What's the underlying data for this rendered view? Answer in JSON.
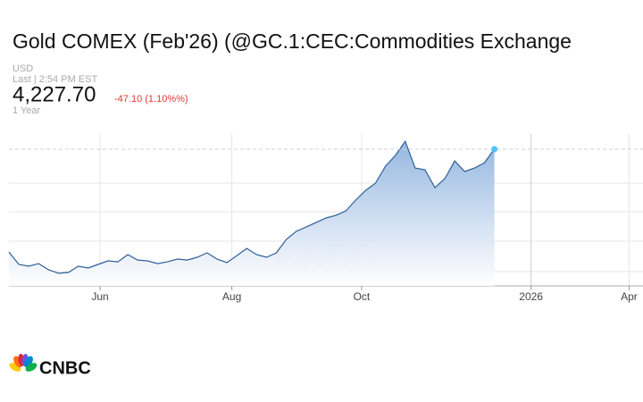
{
  "header": {
    "title": "Gold COMEX (Feb'26) (@GC.1:CEC:Commodities Exchange",
    "currency": "USD",
    "last_time": "Last | 2:54 PM EST",
    "price": "4,227.70",
    "change": "-47.10 (1.10%%)",
    "period": "1 Year"
  },
  "chart_data": {
    "type": "line",
    "color": "#2f5f98",
    "x": [
      0,
      1,
      2,
      3,
      4,
      5,
      6,
      7,
      8,
      9,
      10,
      11,
      12,
      13,
      14,
      15,
      16,
      17,
      18,
      19,
      20,
      21,
      22,
      23,
      24,
      25,
      26,
      27,
      28,
      29,
      30,
      31,
      32,
      33,
      34,
      35,
      36,
      37,
      38,
      39,
      40,
      41,
      42,
      43,
      44,
      45,
      46,
      47,
      48,
      49
    ],
    "values": [
      3360,
      3255,
      3240,
      3262,
      3210,
      3180,
      3187,
      3240,
      3225,
      3255,
      3285,
      3277,
      3338,
      3292,
      3285,
      3262,
      3277,
      3300,
      3292,
      3315,
      3353,
      3300,
      3270,
      3330,
      3390,
      3338,
      3315,
      3353,
      3466,
      3534,
      3571,
      3609,
      3647,
      3669,
      3707,
      3798,
      3880,
      3941,
      4084,
      4175,
      4295,
      4069,
      4054,
      3903,
      3979,
      4129,
      4039,
      4069,
      4114,
      4227.7
    ],
    "xlim": [
      0,
      64
    ],
    "xticks": [
      {
        "value": 9.2,
        "label": "Jun"
      },
      {
        "value": 22.5,
        "label": "Aug"
      },
      {
        "value": 35.6,
        "label": "Oct"
      },
      {
        "value": 52.7,
        "label": "2026"
      },
      {
        "value": 62.6,
        "label": "Apr"
      }
    ],
    "ylim": [
      3074,
      4356
    ]
  },
  "logo": "CNBC"
}
